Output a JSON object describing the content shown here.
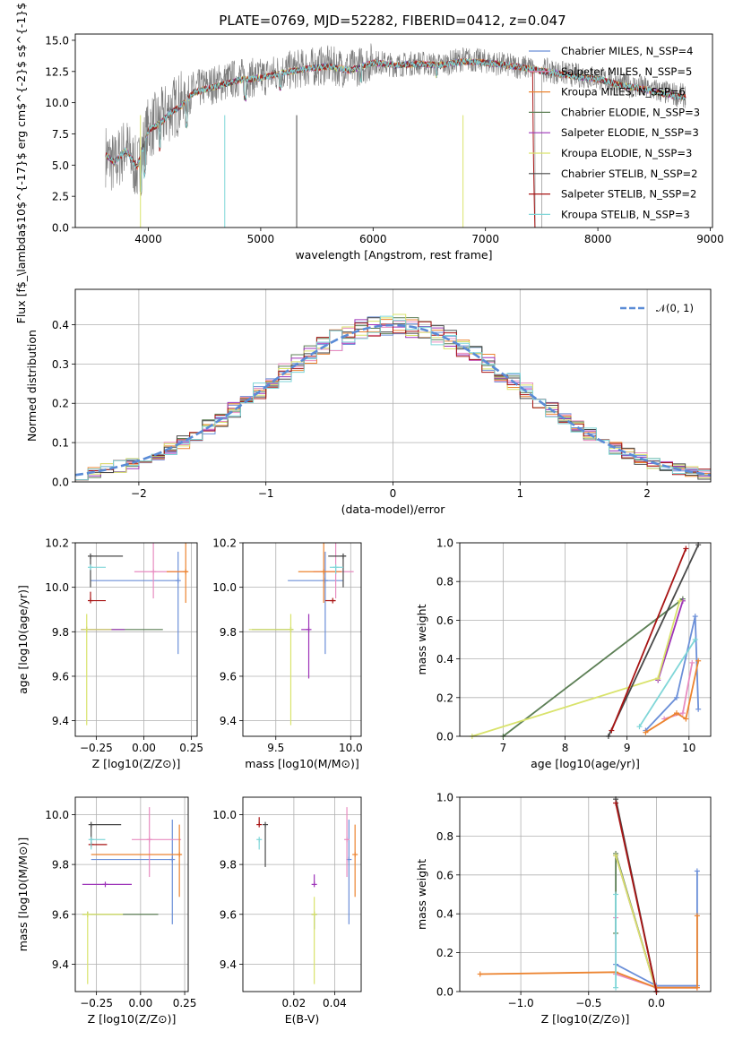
{
  "title": "PLATE=0769, MJD=52282, FIBERID=0412, z=0.047",
  "colors": [
    "#6b8fd8",
    "#e88cc0",
    "#ec8430",
    "#5c7f55",
    "#9d33b8",
    "#d9e36b",
    "#494949",
    "#a81414",
    "#7fd6d8"
  ],
  "chart_data": [
    {
      "id": "spectrum",
      "type": "line",
      "xlabel": "wavelength [Angstrom, rest frame]",
      "ylabel": "Flux [f$_\\lambda$10$^{-17}$ erg cm$^{-2}$ s$^{-1}$ A$^{-1}$]",
      "xlim": [
        3350,
        9020
      ],
      "ylim": [
        0,
        15.5
      ],
      "xticks": [
        "4000",
        "5000",
        "6000",
        "7000",
        "8000",
        "9000"
      ],
      "yticks": [
        "0.0",
        "2.5",
        "5.0",
        "7.5",
        "10.0",
        "12.5",
        "15.0"
      ],
      "legend": [
        "Chabrier MILES, N_SSP=4",
        "Salpeter MILES, N_SSP=5",
        "Kroupa MILES, N_SSP=6",
        "Chabrier ELODIE, N_SSP=3",
        "Salpeter ELODIE, N_SSP=3",
        "Kroupa ELODIE, N_SSP=3",
        "Chabrier STELIB, N_SSP=2",
        "Salpeter STELIB, N_SSP=2",
        "Kroupa STELIB, N_SSP=3"
      ],
      "legend_location": "right",
      "data_line": {
        "name": "data",
        "x": [
          3600,
          3700,
          3800,
          3900,
          4000,
          4100,
          4200,
          4300,
          4400,
          4600,
          4800,
          5000,
          5200,
          5400,
          5600,
          5800,
          6000,
          6200,
          6400,
          6600,
          6800,
          7000,
          7200,
          7400,
          7600,
          7800,
          8000,
          8200,
          8400,
          8600,
          8800
        ],
        "y": [
          6.0,
          5.0,
          6.5,
          4.5,
          8.0,
          8.5,
          9.5,
          10.0,
          11.0,
          11.5,
          12.0,
          12.0,
          12.5,
          12.8,
          13.0,
          12.7,
          13.3,
          13.0,
          13.2,
          13.0,
          13.5,
          13.3,
          13.0,
          12.8,
          12.5,
          12.2,
          12.0,
          11.5,
          11.2,
          10.8,
          10.5
        ]
      },
      "model_line": {
        "x": [
          3600,
          3700,
          3800,
          3900,
          4000,
          4100,
          4200,
          4300,
          4400,
          4600,
          4800,
          5000,
          5200,
          5400,
          5600,
          5800,
          6000,
          6200,
          6400,
          6600,
          6800,
          7000,
          7200,
          7400,
          7600,
          7800,
          8000,
          8200,
          8400,
          8600,
          8800
        ],
        "y": [
          6.0,
          5.2,
          6.2,
          4.8,
          7.8,
          8.3,
          9.2,
          9.8,
          10.8,
          11.3,
          11.8,
          12.0,
          12.4,
          12.7,
          12.9,
          12.6,
          13.2,
          13.0,
          13.1,
          13.0,
          13.3,
          13.2,
          13.0,
          12.7,
          12.4,
          12.1,
          11.9,
          11.4,
          11.1,
          10.7,
          10.4
        ]
      }
    },
    {
      "id": "residuals",
      "type": "line",
      "xlabel": "(data-model)/error",
      "ylabel": "Normed distribution",
      "xlim": [
        -2.5,
        2.5
      ],
      "ylim": [
        0,
        0.49
      ],
      "xticks": [
        "−2",
        "−1",
        "0",
        "1",
        "2"
      ],
      "yticks": [
        "0.0",
        "0.1",
        "0.2",
        "0.3",
        "0.4"
      ],
      "legend": [
        "𝒩(0, 1)"
      ],
      "legend_location": "upper right",
      "gaussian": {
        "mu": 0,
        "sigma": 1
      },
      "bin_width": 0.1
    },
    {
      "id": "age-vs-Z",
      "type": "scatter",
      "xlabel": "Z [log10(Z/Z⊙)]",
      "ylabel": "age [log10(age/yr)]",
      "xlim": [
        -0.36,
        0.28
      ],
      "ylim": [
        9.33,
        10.2
      ],
      "xticks": [
        "−0.25",
        "0.00",
        "0.25"
      ],
      "yticks": [
        "9.4",
        "9.6",
        "9.8",
        "10.0",
        "10.2"
      ],
      "points": [
        {
          "x": 0.18,
          "y": 10.03,
          "xerr": [
            0.46,
            0
          ],
          "yerr": [
            0.33,
            0.13
          ]
        },
        {
          "x": 0.05,
          "y": 10.07,
          "xerr": [
            0.1,
            0.18
          ],
          "yerr": [
            0.12,
            0.13
          ]
        },
        {
          "x": 0.22,
          "y": 10.07,
          "xerr": [
            0.1,
            0.01
          ],
          "yerr": [
            0.14,
            0.13
          ]
        },
        {
          "x": -0.3,
          "y": 9.81,
          "xerr": [
            0.03,
            0.4
          ],
          "yerr": [
            0.0,
            0.0
          ]
        },
        {
          "x": -0.3,
          "y": 9.81,
          "xerr": [
            0.03,
            0.2
          ],
          "yerr": [
            0.0,
            0.0
          ]
        },
        {
          "x": -0.3,
          "y": 9.81,
          "xerr": [
            0.03,
            0.13
          ],
          "yerr": [
            0.43,
            0.07
          ]
        },
        {
          "x": -0.28,
          "y": 10.14,
          "xerr": [
            0.0,
            0.17
          ],
          "yerr": [
            0.14,
            0.0
          ]
        },
        {
          "x": -0.28,
          "y": 9.94,
          "xerr": [
            0.0,
            0.08
          ],
          "yerr": [
            0.0,
            0.04
          ]
        },
        {
          "x": -0.28,
          "y": 10.09,
          "xerr": [
            0.0,
            0.08
          ],
          "yerr": [
            0.0,
            0.0
          ]
        }
      ]
    },
    {
      "id": "age-vs-mass",
      "type": "scatter",
      "xlabel": "mass [log10(M/M⊙)]",
      "ylabel": "",
      "xlim": [
        9.28,
        10.07
      ],
      "ylim": [
        9.33,
        10.2
      ],
      "xticks": [
        "9.5",
        "10.0"
      ],
      "yticks": [
        "9.4",
        "9.6",
        "9.8",
        "10.0",
        "10.2"
      ],
      "points": [
        {
          "x": 9.83,
          "y": 10.03,
          "xerr": [
            0.25,
            0.12
          ],
          "yerr": [
            0.33,
            0.13
          ]
        },
        {
          "x": 9.9,
          "y": 10.07,
          "xerr": [
            0.15,
            0.12
          ],
          "yerr": [
            0.12,
            0.13
          ]
        },
        {
          "x": 9.82,
          "y": 10.07,
          "xerr": [
            0.17,
            0.12
          ],
          "yerr": [
            0.14,
            0.13
          ]
        },
        {
          "x": 9.6,
          "y": 9.81,
          "xerr": [
            0.26,
            0.0
          ],
          "yerr": [
            0.0,
            0.0
          ]
        },
        {
          "x": 9.72,
          "y": 9.81,
          "xerr": [
            0.05,
            0.0
          ],
          "yerr": [
            0.22,
            0.07
          ]
        },
        {
          "x": 9.6,
          "y": 9.81,
          "xerr": [
            0.28,
            0.0
          ],
          "yerr": [
            0.43,
            0.07
          ]
        },
        {
          "x": 9.95,
          "y": 10.14,
          "xerr": [
            0.1,
            0.02
          ],
          "yerr": [
            0.14,
            0.0
          ]
        },
        {
          "x": 9.88,
          "y": 9.94,
          "xerr": [
            0.05,
            0.02
          ],
          "yerr": [
            0.0,
            0.0
          ]
        },
        {
          "x": 9.9,
          "y": 10.09,
          "xerr": [
            0.04,
            0.05
          ],
          "yerr": [
            0.03,
            0.0
          ]
        }
      ]
    },
    {
      "id": "weight-vs-age",
      "type": "line",
      "xlabel": "age [log10(age/yr)]",
      "ylabel": "mass weight",
      "xlim": [
        6.3,
        10.35
      ],
      "ylim": [
        0,
        1
      ],
      "xticks": [
        "7",
        "8",
        "9",
        "10"
      ],
      "yticks": [
        "0.0",
        "0.2",
        "0.4",
        "0.6",
        "0.8",
        "1.0"
      ],
      "series": [
        {
          "x": [
            9.3,
            9.8,
            10.1,
            10.15
          ],
          "y": [
            0.03,
            0.2,
            0.62,
            0.14
          ]
        },
        {
          "x": [
            9.6,
            9.9,
            10.05
          ],
          "y": [
            0.09,
            0.12,
            0.38
          ]
        },
        {
          "x": [
            9.3,
            9.8,
            9.95,
            10.15
          ],
          "y": [
            0.02,
            0.12,
            0.09,
            0.39
          ]
        },
        {
          "x": [
            7.0,
            9.9
          ],
          "y": [
            0.0,
            0.71
          ]
        },
        {
          "x": [
            9.5,
            9.9
          ],
          "y": [
            0.29,
            0.7
          ]
        },
        {
          "x": [
            6.5,
            9.5,
            9.85
          ],
          "y": [
            0.0,
            0.3,
            0.7
          ]
        },
        {
          "x": [
            8.7,
            10.15
          ],
          "y": [
            0.0,
            0.99
          ]
        },
        {
          "x": [
            8.75,
            9.95
          ],
          "y": [
            0.03,
            0.97
          ]
        },
        {
          "x": [
            9.2,
            10.1
          ],
          "y": [
            0.05,
            0.5
          ]
        }
      ]
    },
    {
      "id": "mass-vs-Z",
      "type": "scatter",
      "xlabel": "Z [log10(Z/Z⊙)]",
      "ylabel": "mass [log10(M/M⊙)]",
      "xlim": [
        -0.37,
        0.27
      ],
      "ylim": [
        9.29,
        10.07
      ],
      "xticks": [
        "−0.25",
        "0.00",
        "0.25"
      ],
      "yticks": [
        "9.4",
        "9.6",
        "9.8",
        "10.0"
      ],
      "points": [
        {
          "x": 0.18,
          "y": 9.82,
          "xerr": [
            0.46,
            0
          ],
          "yerr": [
            0.26,
            0.16
          ]
        },
        {
          "x": 0.05,
          "y": 9.9,
          "xerr": [
            0.1,
            0.18
          ],
          "yerr": [
            0.15,
            0.13
          ]
        },
        {
          "x": 0.22,
          "y": 9.84,
          "xerr": [
            0.5,
            0.01
          ],
          "yerr": [
            0.17,
            0.12
          ]
        },
        {
          "x": -0.3,
          "y": 9.6,
          "xerr": [
            0.03,
            0.4
          ],
          "yerr": [
            0.0,
            0.0
          ]
        },
        {
          "x": -0.2,
          "y": 9.72,
          "xerr": [
            0.13,
            0.15
          ],
          "yerr": [
            0.0,
            0.0
          ]
        },
        {
          "x": -0.3,
          "y": 9.6,
          "xerr": [
            0.03,
            0.2
          ],
          "yerr": [
            0.28,
            0.0
          ]
        },
        {
          "x": -0.28,
          "y": 9.96,
          "xerr": [
            0.0,
            0.17
          ],
          "yerr": [
            0.08,
            0.0
          ]
        },
        {
          "x": -0.28,
          "y": 9.88,
          "xerr": [
            0.0,
            0.09
          ],
          "yerr": [
            0.0,
            0.03
          ]
        },
        {
          "x": -0.28,
          "y": 9.9,
          "xerr": [
            0.0,
            0.08
          ],
          "yerr": [
            0.04,
            0.0
          ]
        }
      ]
    },
    {
      "id": "mass-vs-EBV",
      "type": "scatter",
      "xlabel": "E(B-V)",
      "ylabel": "",
      "xlim": [
        -0.005,
        0.053
      ],
      "ylim": [
        9.29,
        10.07
      ],
      "xticks": [
        "0.02",
        "0.04"
      ],
      "yticks": [
        "9.4",
        "9.6",
        "9.8",
        "10.0"
      ],
      "points": [
        {
          "x": 0.047,
          "y": 9.82,
          "yerr": [
            0.26,
            0.16
          ]
        },
        {
          "x": 0.046,
          "y": 9.9,
          "yerr": [
            0.15,
            0.13
          ]
        },
        {
          "x": 0.05,
          "y": 9.84,
          "yerr": [
            0.17,
            0.12
          ]
        },
        {
          "x": 0.03,
          "y": 9.6,
          "yerr": [
            0.06,
            0.0
          ]
        },
        {
          "x": 0.03,
          "y": 9.72,
          "yerr": [
            0.0,
            0.04
          ]
        },
        {
          "x": 0.03,
          "y": 9.6,
          "yerr": [
            0.28,
            0.07
          ]
        },
        {
          "x": 0.006,
          "y": 9.96,
          "yerr": [
            0.17,
            0.0
          ]
        },
        {
          "x": 0.003,
          "y": 9.96,
          "yerr": [
            0.0,
            0.03
          ]
        },
        {
          "x": 0.003,
          "y": 9.9,
          "yerr": [
            0.04,
            0.0
          ]
        }
      ]
    },
    {
      "id": "weight-vs-Z",
      "type": "line",
      "xlabel": "Z [log10(Z/Z⊙)]",
      "ylabel": "mass weight",
      "xlim": [
        -1.45,
        0.4
      ],
      "ylim": [
        0,
        1
      ],
      "xticks": [
        "−1.0",
        "−0.5",
        "0.0"
      ],
      "yticks": [
        "0.0",
        "0.2",
        "0.4",
        "0.6",
        "0.8",
        "1.0"
      ],
      "series": [
        {
          "x": [
            -0.3,
            0.0,
            0.3,
            0.3
          ],
          "y": [
            0.14,
            0.03,
            0.03,
            0.62
          ]
        },
        {
          "x": [
            -0.3,
            -0.3,
            0.0,
            0.3
          ],
          "y": [
            0.38,
            0.09,
            0.02,
            0.02
          ]
        },
        {
          "x": [
            -1.3,
            -0.3,
            0.0,
            0.3,
            0.3
          ],
          "y": [
            0.09,
            0.1,
            0.02,
            0.02,
            0.39
          ]
        },
        {
          "x": [
            -0.3,
            -0.3,
            0.0
          ],
          "y": [
            0.3,
            0.71,
            0.0
          ]
        },
        {
          "x": [
            -0.3,
            0.0
          ],
          "y": [
            0.7,
            0.0
          ]
        },
        {
          "x": [
            -0.3,
            0.0
          ],
          "y": [
            0.7,
            0.0
          ]
        },
        {
          "x": [
            -0.3,
            0.0
          ],
          "y": [
            0.99,
            0.0
          ]
        },
        {
          "x": [
            -0.3,
            0.0
          ],
          "y": [
            0.97,
            0.0
          ]
        },
        {
          "x": [
            -0.3,
            -0.3
          ],
          "y": [
            0.02,
            0.5
          ]
        }
      ]
    }
  ]
}
